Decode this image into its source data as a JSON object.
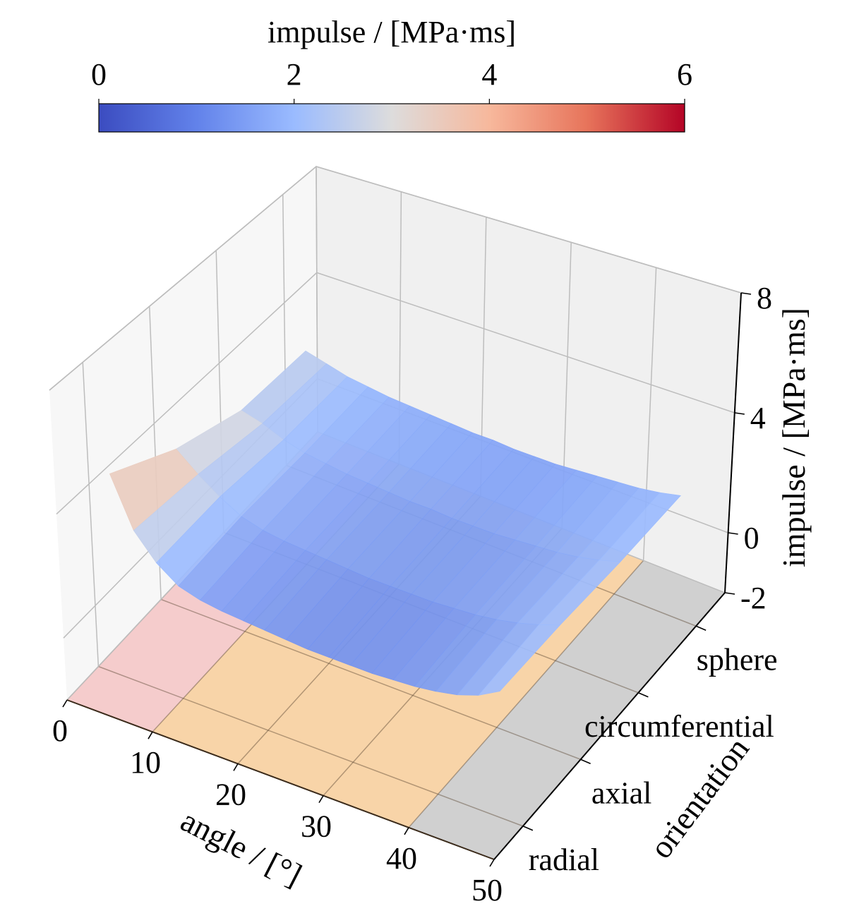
{
  "chart_data": {
    "type": "surface3d",
    "title": "",
    "colorbar": {
      "label": "impulse / [MPa·ms]",
      "range": [
        0,
        6
      ],
      "ticks": [
        0,
        2,
        4,
        6
      ],
      "colormap": "coolwarm",
      "placement": "top"
    },
    "xlabel": "angle / [°]",
    "ylabel": "orientation",
    "zlabel": "impulse /  [MPa·ms]",
    "xlim": [
      0,
      50
    ],
    "xticks": [
      0,
      10,
      20,
      30,
      40,
      50
    ],
    "ycategories": [
      "radial",
      "axial",
      "circumferential",
      "sphere"
    ],
    "zlim": [
      -2,
      8
    ],
    "zticks": [
      -2,
      0,
      4,
      8
    ],
    "grid": true,
    "floor_regions": [
      {
        "x_range": [
          0,
          10
        ],
        "color": "#f5cccc"
      },
      {
        "x_range": [
          10,
          40
        ],
        "color": "#f8d4a8"
      },
      {
        "x_range": [
          40,
          50
        ],
        "color": "#d0d0d0"
      }
    ],
    "surface": {
      "x": [
        2.5,
        5,
        7.5,
        10,
        12.5,
        15,
        17.5,
        20,
        22.5,
        25,
        27.5,
        30,
        32.5,
        35,
        37.5,
        40,
        42.5,
        45,
        47.5
      ],
      "y_index": [
        0,
        1,
        2,
        3
      ],
      "z": [
        [
          4.6,
          3.0,
          2.2,
          1.7,
          1.5,
          1.4,
          1.35,
          1.3,
          1.25,
          1.2,
          1.2,
          1.2,
          1.2,
          1.25,
          1.3,
          1.4,
          1.55,
          1.8,
          2.2
        ],
        [
          3.4,
          2.8,
          2.3,
          1.9,
          1.7,
          1.6,
          1.55,
          1.5,
          1.45,
          1.4,
          1.4,
          1.4,
          1.4,
          1.45,
          1.5,
          1.6,
          1.75,
          1.95,
          2.2
        ],
        [
          2.6,
          2.4,
          2.1,
          1.9,
          1.8,
          1.7,
          1.65,
          1.6,
          1.55,
          1.55,
          1.5,
          1.5,
          1.5,
          1.55,
          1.6,
          1.65,
          1.75,
          1.9,
          2.1
        ],
        [
          2.5,
          2.3,
          2.1,
          2.0,
          1.9,
          1.85,
          1.8,
          1.75,
          1.7,
          1.7,
          1.65,
          1.65,
          1.65,
          1.7,
          1.75,
          1.8,
          1.85,
          1.95,
          2.1
        ]
      ]
    }
  }
}
